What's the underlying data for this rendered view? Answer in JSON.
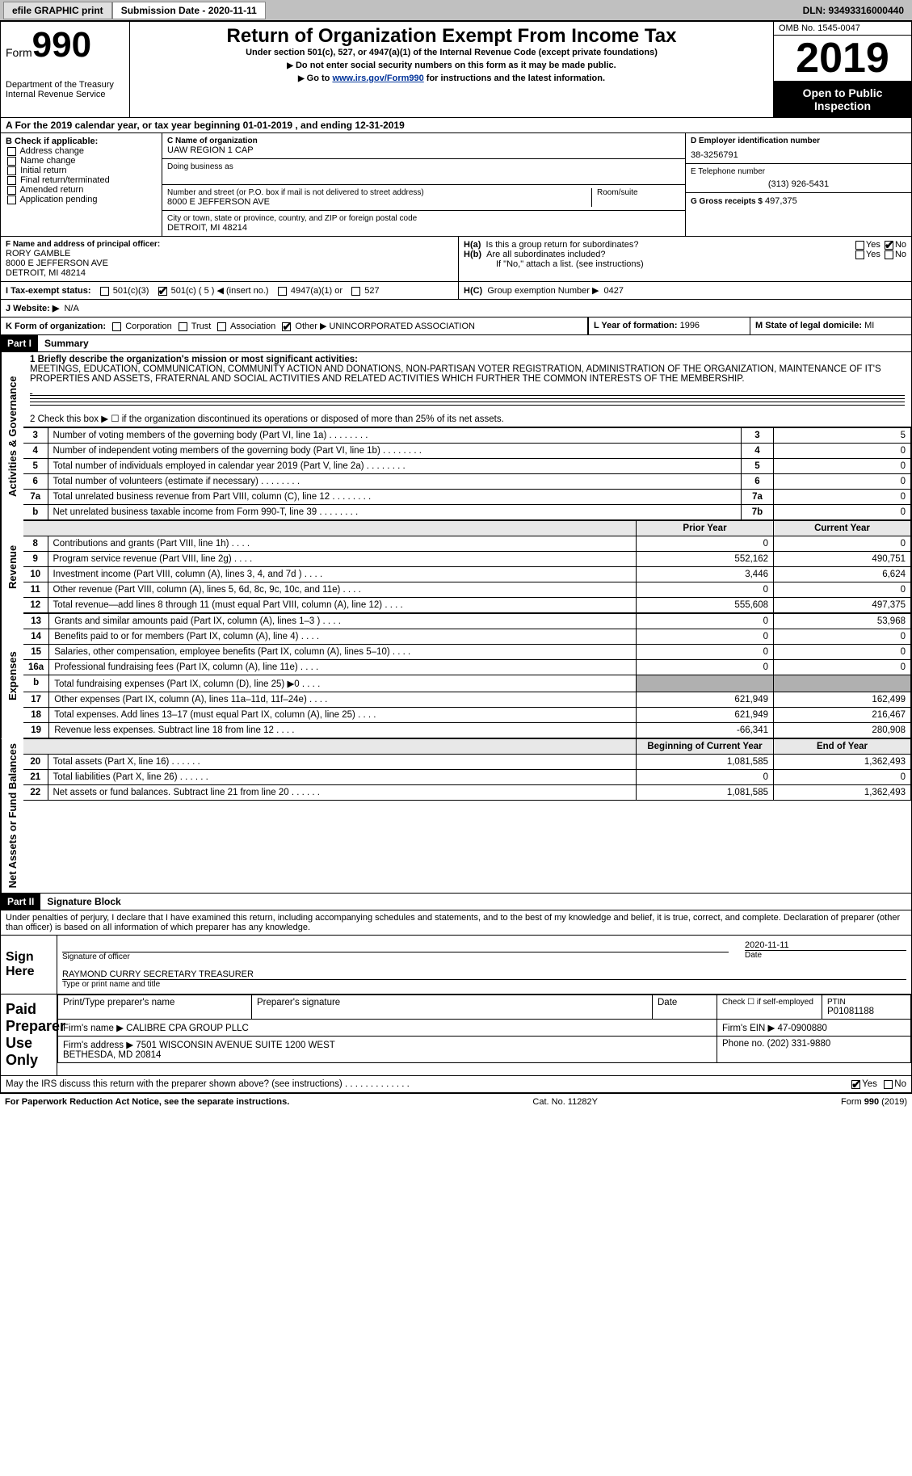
{
  "topbar": {
    "efile": "efile GRAPHIC print",
    "submission_label": "Submission Date - 2020-11-11",
    "dln_label": "DLN: 93493316000440"
  },
  "header": {
    "form_word": "Form",
    "form_no": "990",
    "dept": "Department of the Treasury\nInternal Revenue Service",
    "title": "Return of Organization Exempt From Income Tax",
    "subtitle": "Under section 501(c), 527, or 4947(a)(1) of the Internal Revenue Code (except private foundations)",
    "note1": "Do not enter social security numbers on this form as it may be made public.",
    "note2_pre": "Go to ",
    "note2_link": "www.irs.gov/Form990",
    "note2_post": " for instructions and the latest information.",
    "omb": "OMB No. 1545-0047",
    "year": "2019",
    "opi": "Open to Public Inspection"
  },
  "period": "For the 2019 calendar year, or tax year beginning 01-01-2019   , and ending 12-31-2019",
  "boxB": {
    "label": "B Check if applicable:",
    "items": [
      "Address change",
      "Name change",
      "Initial return",
      "Final return/terminated",
      "Amended return",
      "Application pending"
    ]
  },
  "boxC": {
    "name_label": "C Name of organization",
    "name": "UAW REGION 1 CAP",
    "dba_label": "Doing business as",
    "street_label": "Number and street (or P.O. box if mail is not delivered to street address)",
    "room_label": "Room/suite",
    "street": "8000 E JEFFERSON AVE",
    "city_label": "City or town, state or province, country, and ZIP or foreign postal code",
    "city": "DETROIT, MI  48214"
  },
  "boxD": {
    "label": "D Employer identification number",
    "value": "38-3256791"
  },
  "boxE": {
    "label": "E Telephone number",
    "value": "(313) 926-5431"
  },
  "boxG": {
    "label": "G Gross receipts $",
    "value": "497,375"
  },
  "boxF": {
    "label": "F Name and address of principal officer:",
    "name": "RORY GAMBLE",
    "addr1": "8000 E JEFFERSON AVE",
    "addr2": "DETROIT, MI  48214"
  },
  "boxH": {
    "ha": "Is this a group return for subordinates?",
    "hb": "Are all subordinates included?",
    "hnote": "If \"No,\" attach a list. (see instructions)",
    "hc": "Group exemption Number ▶",
    "hc_val": "0427",
    "yes": "Yes",
    "no": "No"
  },
  "boxI": {
    "label": "I    Tax-exempt status:",
    "opts": [
      "501(c)(3)",
      "501(c) ( 5 ) ◀ (insert no.)",
      "4947(a)(1) or",
      "527"
    ]
  },
  "boxJ": {
    "label": "J    Website: ▶",
    "value": "N/A"
  },
  "boxK": {
    "label": "K Form of organization:",
    "opts": [
      "Corporation",
      "Trust",
      "Association",
      "Other ▶"
    ],
    "other": "UNINCORPORATED ASSOCIATION"
  },
  "boxL": {
    "label": "L Year of formation:",
    "value": "1996"
  },
  "boxM": {
    "label": "M State of legal domicile:",
    "value": "MI"
  },
  "part1": {
    "hdr": "Part I",
    "title": "Summary",
    "l1_label": "1  Briefly describe the organization's mission or most significant activities:",
    "l1_text": "MEETINGS, EDUCATION, COMMUNICATION, COMMUNITY ACTION AND DONATIONS, NON-PARTISAN VOTER REGISTRATION, ADMINISTRATION OF THE ORGANIZATION, MAINTENANCE OF IT'S PROPERTIES AND ASSETS, FRATERNAL AND SOCIAL ACTIVITIES AND RELATED ACTIVITIES WHICH FURTHER THE COMMON INTERESTS OF THE MEMBERSHIP.",
    "l2": "2   Check this box ▶ ☐  if the organization discontinued its operations or disposed of more than 25% of its net assets.",
    "rows_top": [
      {
        "n": "3",
        "t": "Number of voting members of the governing body (Part VI, line 1a)",
        "k": "3",
        "v": "5"
      },
      {
        "n": "4",
        "t": "Number of independent voting members of the governing body (Part VI, line 1b)",
        "k": "4",
        "v": "0"
      },
      {
        "n": "5",
        "t": "Total number of individuals employed in calendar year 2019 (Part V, line 2a)",
        "k": "5",
        "v": "0"
      },
      {
        "n": "6",
        "t": "Total number of volunteers (estimate if necessary)",
        "k": "6",
        "v": "0"
      },
      {
        "n": "7a",
        "t": "Total unrelated business revenue from Part VIII, column (C), line 12",
        "k": "7a",
        "v": "0"
      },
      {
        "n": "b",
        "t": "Net unrelated business taxable income from Form 990-T, line 39",
        "k": "7b",
        "v": "0"
      }
    ],
    "prior_hdr": "Prior Year",
    "curr_hdr": "Current Year",
    "revenue": [
      {
        "n": "8",
        "t": "Contributions and grants (Part VIII, line 1h)",
        "p": "0",
        "c": "0"
      },
      {
        "n": "9",
        "t": "Program service revenue (Part VIII, line 2g)",
        "p": "552,162",
        "c": "490,751"
      },
      {
        "n": "10",
        "t": "Investment income (Part VIII, column (A), lines 3, 4, and 7d )",
        "p": "3,446",
        "c": "6,624"
      },
      {
        "n": "11",
        "t": "Other revenue (Part VIII, column (A), lines 5, 6d, 8c, 9c, 10c, and 11e)",
        "p": "0",
        "c": "0"
      },
      {
        "n": "12",
        "t": "Total revenue—add lines 8 through 11 (must equal Part VIII, column (A), line 12)",
        "p": "555,608",
        "c": "497,375"
      }
    ],
    "expenses": [
      {
        "n": "13",
        "t": "Grants and similar amounts paid (Part IX, column (A), lines 1–3 )",
        "p": "0",
        "c": "53,968"
      },
      {
        "n": "14",
        "t": "Benefits paid to or for members (Part IX, column (A), line 4)",
        "p": "0",
        "c": "0"
      },
      {
        "n": "15",
        "t": "Salaries, other compensation, employee benefits (Part IX, column (A), lines 5–10)",
        "p": "0",
        "c": "0"
      },
      {
        "n": "16a",
        "t": "Professional fundraising fees (Part IX, column (A), line 11e)",
        "p": "0",
        "c": "0"
      },
      {
        "n": "b",
        "t": "Total fundraising expenses (Part IX, column (D), line 25) ▶0",
        "p": "",
        "c": "",
        "shade": true
      },
      {
        "n": "17",
        "t": "Other expenses (Part IX, column (A), lines 11a–11d, 11f–24e)",
        "p": "621,949",
        "c": "162,499"
      },
      {
        "n": "18",
        "t": "Total expenses. Add lines 13–17 (must equal Part IX, column (A), line 25)",
        "p": "621,949",
        "c": "216,467"
      },
      {
        "n": "19",
        "t": "Revenue less expenses. Subtract line 18 from line 12",
        "p": "-66,341",
        "c": "280,908"
      }
    ],
    "nab_hdr1": "Beginning of Current Year",
    "nab_hdr2": "End of Year",
    "nab": [
      {
        "n": "20",
        "t": "Total assets (Part X, line 16)",
        "p": "1,081,585",
        "c": "1,362,493"
      },
      {
        "n": "21",
        "t": "Total liabilities (Part X, line 26)",
        "p": "0",
        "c": "0"
      },
      {
        "n": "22",
        "t": "Net assets or fund balances. Subtract line 21 from line 20",
        "p": "1,081,585",
        "c": "1,362,493"
      }
    ],
    "vtabs": [
      "Activities & Governance",
      "Revenue",
      "Expenses",
      "Net Assets or Fund Balances"
    ]
  },
  "part2": {
    "hdr": "Part II",
    "title": "Signature Block",
    "decl": "Under penalties of perjury, I declare that I have examined this return, including accompanying schedules and statements, and to the best of my knowledge and belief, it is true, correct, and complete. Declaration of preparer (other than officer) is based on all information of which preparer has any knowledge.",
    "sign_here": "Sign Here",
    "sig_officer": "Signature of officer",
    "sig_date": "2020-11-11",
    "date_lbl": "Date",
    "officer_name": "RAYMOND CURRY  SECRETARY TREASURER",
    "officer_type": "Type or print name and title",
    "paid": "Paid Preparer Use Only",
    "prep_name_lbl": "Print/Type preparer's name",
    "prep_sig_lbl": "Preparer's signature",
    "date2": "Date",
    "check_self": "Check ☐ if self-employed",
    "ptin_lbl": "PTIN",
    "ptin": "P01081188",
    "firm_name_lbl": "Firm's name    ▶",
    "firm_name": "CALIBRE CPA GROUP PLLC",
    "firm_ein_lbl": "Firm's EIN ▶",
    "firm_ein": "47-0900880",
    "firm_addr_lbl": "Firm's address ▶",
    "firm_addr": "7501 WISCONSIN AVENUE SUITE 1200 WEST\nBETHESDA, MD  20814",
    "phone_lbl": "Phone no.",
    "phone": "(202) 331-9880",
    "discuss": "May the IRS discuss this return with the preparer shown above? (see instructions)",
    "yes": "Yes",
    "no": "No"
  },
  "footer": {
    "left": "For Paperwork Reduction Act Notice, see the separate instructions.",
    "mid": "Cat. No. 11282Y",
    "right": "Form 990 (2019)"
  },
  "colors": {
    "link": "#003399"
  }
}
